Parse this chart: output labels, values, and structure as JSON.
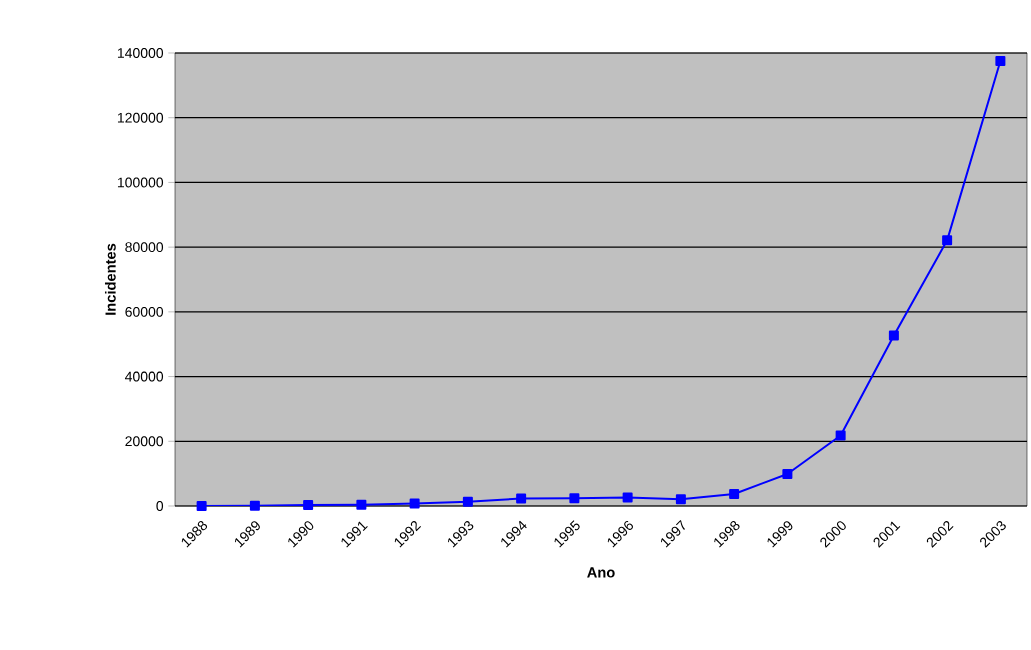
{
  "chart_data": {
    "type": "line",
    "xlabel": "Ano",
    "ylabel": "Incidentes",
    "categories": [
      "1988",
      "1989",
      "1990",
      "1991",
      "1992",
      "1993",
      "1994",
      "1995",
      "1996",
      "1997",
      "1998",
      "1999",
      "2000",
      "2001",
      "2002",
      "2003"
    ],
    "values": [
      0,
      100,
      300,
      400,
      800,
      1300,
      2300,
      2400,
      2600,
      2100,
      3700,
      9900,
      21800,
      52700,
      82100,
      137500
    ],
    "color": "#0000ff",
    "marker": "square",
    "line_style": "solid",
    "ylim": [
      0,
      140000
    ],
    "yticks": [
      0,
      20000,
      40000,
      60000,
      80000,
      100000,
      120000,
      140000
    ],
    "grid": "y"
  }
}
